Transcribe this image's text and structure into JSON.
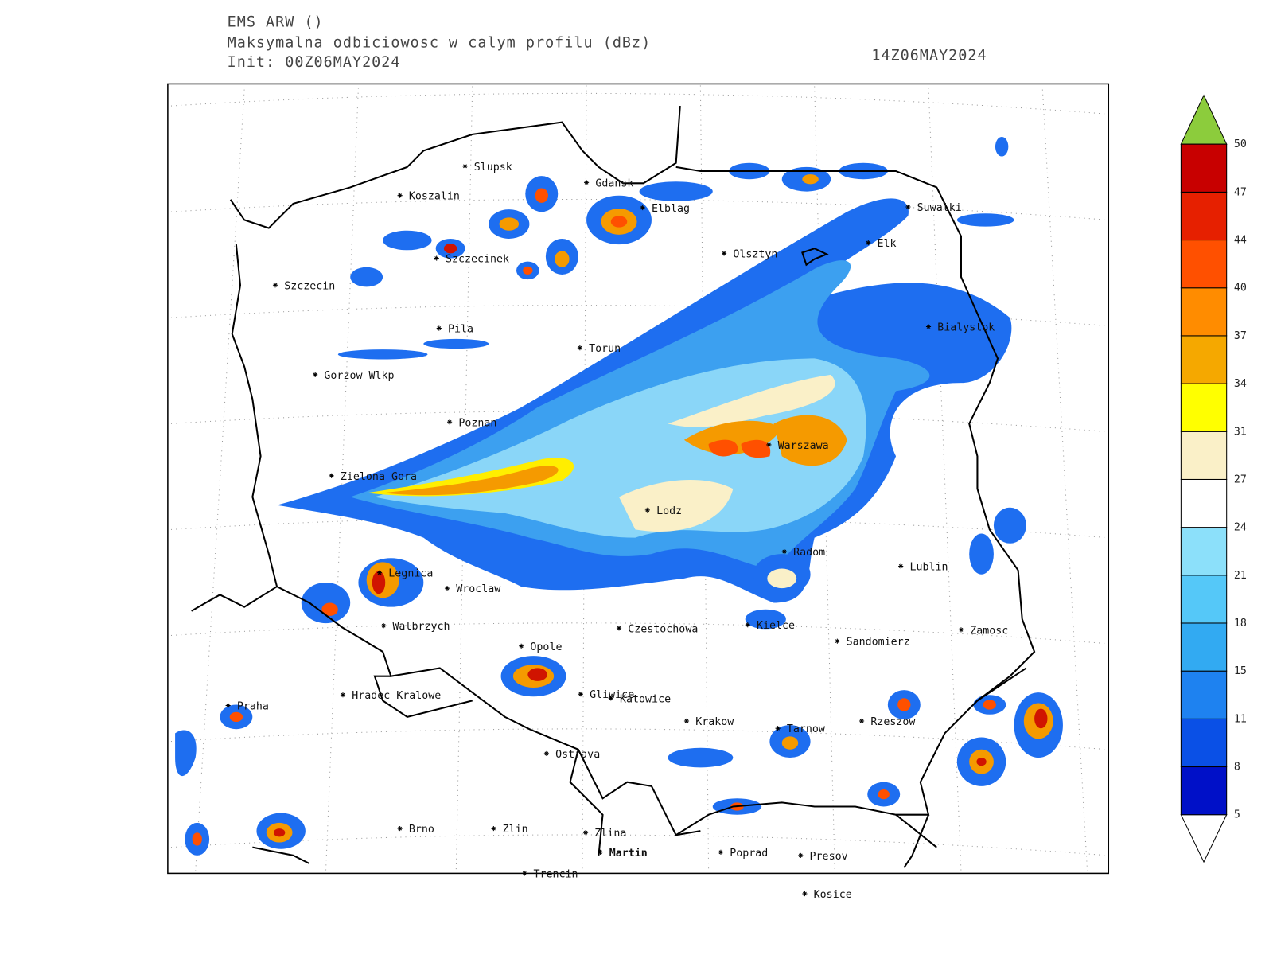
{
  "header": {
    "model": "EMS ARW ()",
    "title": "Maksymalna odbiciowosc w calym profilu (dBz)",
    "init": "Init: 00Z06MAY2024",
    "valid": "14Z06MAY2024"
  },
  "cities": [
    "Slupsk",
    "Gdansk",
    "Koszalin",
    "Elblag",
    "Suwalki",
    "Szczecinek",
    "Olsztyn",
    "Elk",
    "Szczecin",
    "Pila",
    "Bialystok",
    "Torun",
    "Gorzow Wlkp",
    "Poznan",
    "Warszawa",
    "Zielona Gora",
    "Lodz",
    "Radom",
    "Lublin",
    "Legnica",
    "Wroclaw",
    "Walbrzych",
    "Czestochowa",
    "Kielce",
    "Zamosc",
    "Sandomierz",
    "Opole",
    "Hradec Kralowe",
    "Gliwice",
    "Katowice",
    "Praha",
    "Krakow",
    "Tarnow",
    "Rzeszow",
    "Ostrava",
    "Brno",
    "Zlin",
    "Zlina",
    "Martin",
    "Poprad",
    "Presov",
    "Trencin",
    "Kosice"
  ],
  "colorbar": {
    "levels": [
      5,
      8,
      11,
      15,
      18,
      21,
      24,
      27,
      31,
      34,
      37,
      40,
      44,
      47,
      50
    ],
    "colors": [
      "#0010c8",
      "#0a50e6",
      "#1e82f0",
      "#32aaf2",
      "#55c8f8",
      "#8ce0fa",
      "#ffffff",
      "#faf0c8",
      "#ffff00",
      "#f5a800",
      "#ff8c00",
      "#ff5000",
      "#e62000",
      "#c80000"
    ],
    "over_color": "#8ccc3c",
    "under_color": "#ffffff"
  }
}
